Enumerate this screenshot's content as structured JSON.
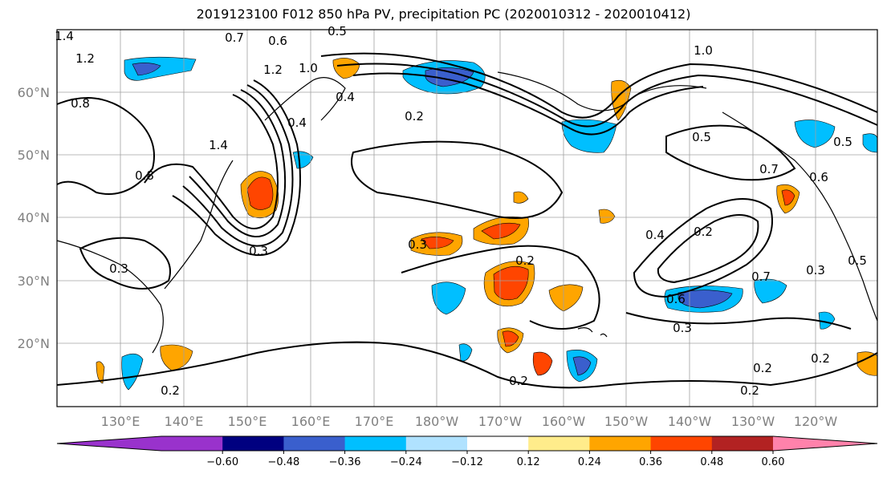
{
  "title": "2019123100 F012 850 hPa PV, precipitation PC (2020010312 - 2020010412)",
  "map": {
    "lat_labels": [
      "60°N",
      "50°N",
      "40°N",
      "30°N",
      "20°N"
    ],
    "lon_labels": [
      "130°E",
      "140°E",
      "150°E",
      "160°E",
      "170°E",
      "180°W",
      "170°W",
      "160°W",
      "150°W",
      "140°W",
      "130°W",
      "120°W"
    ],
    "contour_labels": [
      "0.7",
      "0.6",
      "0.5",
      "1.4",
      "1.2",
      "0.8",
      "1.0",
      "1.2",
      "0.4",
      "0.2",
      "0.4",
      "1.4",
      "0.8",
      "0.3",
      "0.2",
      "0.3",
      "0.2",
      "0.2",
      "1.0",
      "0.5",
      "0.5",
      "0.7",
      "0.6",
      "0.4",
      "0.2",
      "0.6",
      "0.3",
      "0.3",
      "0.2",
      "0.2",
      "0.5",
      "0.7",
      "0.3",
      "0.2"
    ]
  },
  "colorbar": {
    "ticks": [
      "−0.60",
      "−0.48",
      "−0.36",
      "−0.24",
      "−0.12",
      "0.12",
      "0.24",
      "0.36",
      "0.48",
      "0.60"
    ],
    "colors": [
      "#9932cc",
      "#000080",
      "#3a5fcd",
      "#00bfff",
      "#b0e2ff",
      "#ffffff",
      "#ffec8b",
      "#ffa500",
      "#ff4500",
      "#b22222",
      "#ff82ab"
    ]
  }
}
